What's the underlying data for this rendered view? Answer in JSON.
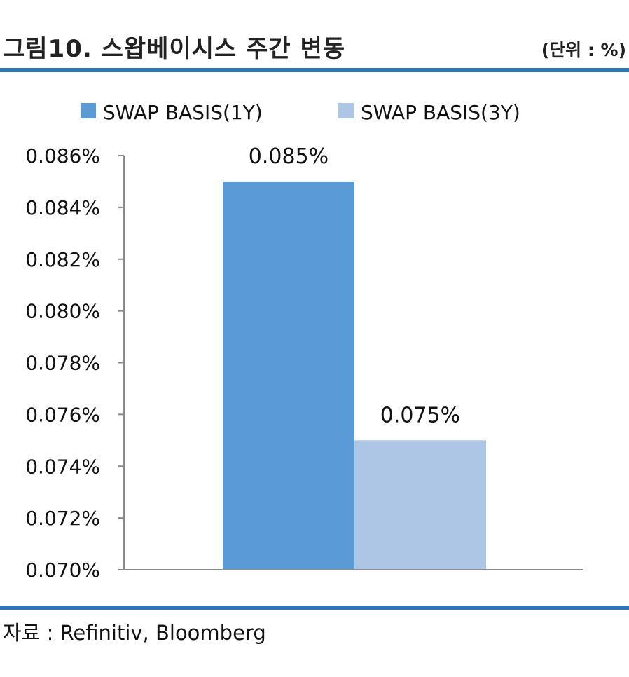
{
  "header": {
    "title": "그림10. 스왑베이시스 주간 변동",
    "unit": "(단위 : %)"
  },
  "footer": {
    "source": "자료 : Refinitiv, Bloomberg"
  },
  "chart_data": {
    "type": "bar",
    "categories": [
      ""
    ],
    "series": [
      {
        "name": "SWAP BASIS(1Y)",
        "values": [
          0.085
        ],
        "color": "#5b9bd5",
        "label": "0.085%"
      },
      {
        "name": "SWAP BASIS(3Y)",
        "values": [
          0.075
        ],
        "color": "#adc6e5",
        "label": "0.075%"
      }
    ],
    "ylim": [
      0.07,
      0.086
    ],
    "yticks": [
      "0.070%",
      "0.072%",
      "0.074%",
      "0.076%",
      "0.078%",
      "0.080%",
      "0.082%",
      "0.084%",
      "0.086%"
    ],
    "grid": false,
    "legend": "top"
  }
}
